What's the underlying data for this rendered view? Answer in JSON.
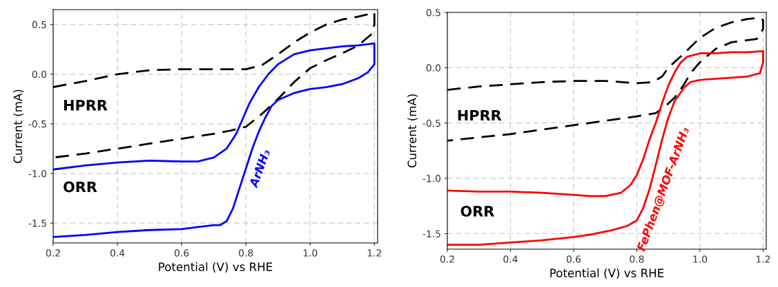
{
  "chart_data": [
    {
      "type": "line",
      "xlabel": "Potential (V) vs RHE",
      "ylabel": "Current (mA)",
      "xlim": [
        0.2,
        1.21
      ],
      "ylim": [
        -1.7,
        0.65
      ],
      "xticks": [
        {
          "value": 0.2,
          "label": "0.2"
        },
        {
          "value": 0.4,
          "label": "0.4"
        },
        {
          "value": 0.6,
          "label": "0.6"
        },
        {
          "value": 0.8,
          "label": "0.8"
        },
        {
          "value": 1.0,
          "label": "1.0"
        },
        {
          "value": 1.2,
          "label": "1.2"
        }
      ],
      "yticks": [
        {
          "value": -1.5,
          "label": "-1.5"
        },
        {
          "value": -1.0,
          "label": "-1.0"
        },
        {
          "value": -0.5,
          "label": "-0.5"
        },
        {
          "value": 0.0,
          "label": "0.0"
        },
        {
          "value": 0.5,
          "label": "0.5"
        }
      ],
      "grid": true,
      "legend": false,
      "annotations": [
        "HPRR",
        "ORR"
      ],
      "series": [
        {
          "color": "#000000",
          "line_style": "dashed",
          "x": [
            0.2,
            0.3,
            0.4,
            0.5,
            0.6,
            0.7,
            0.8,
            0.85,
            0.9,
            0.95,
            1.0,
            1.05,
            1.1,
            1.15,
            1.19,
            1.2,
            1.2,
            1.19,
            1.15,
            1.1,
            1.05,
            1.0,
            0.95,
            0.9,
            0.85,
            0.8,
            0.75,
            0.7,
            0.6,
            0.5,
            0.4,
            0.3,
            0.2
          ],
          "values": [
            -0.13,
            -0.07,
            0.0,
            0.04,
            0.05,
            0.05,
            0.05,
            0.09,
            0.2,
            0.32,
            0.42,
            0.5,
            0.55,
            0.58,
            0.61,
            0.62,
            0.5,
            0.4,
            0.29,
            0.21,
            0.14,
            0.06,
            -0.08,
            -0.25,
            -0.4,
            -0.53,
            -0.57,
            -0.6,
            -0.65,
            -0.7,
            -0.75,
            -0.8,
            -0.84
          ]
        },
        {
          "name": "ArNH₃",
          "color": "#0000ff",
          "line_style": "solid",
          "x": [
            0.2,
            0.3,
            0.4,
            0.5,
            0.6,
            0.65,
            0.7,
            0.72,
            0.74,
            0.76,
            0.78,
            0.8,
            0.82,
            0.84,
            0.86,
            0.88,
            0.9,
            0.95,
            1.0,
            1.05,
            1.1,
            1.15,
            1.18,
            1.2,
            1.2,
            1.15,
            1.1,
            1.0,
            0.95,
            0.9,
            0.87,
            0.84,
            0.81,
            0.79,
            0.77,
            0.74,
            0.7,
            0.65,
            0.6,
            0.5,
            0.4,
            0.3,
            0.2
          ],
          "values": [
            -1.64,
            -1.62,
            -1.59,
            -1.57,
            -1.56,
            -1.54,
            -1.52,
            -1.52,
            -1.48,
            -1.35,
            -1.15,
            -0.95,
            -0.75,
            -0.58,
            -0.44,
            -0.32,
            -0.26,
            -0.19,
            -0.15,
            -0.13,
            -0.1,
            -0.04,
            0.02,
            0.1,
            0.31,
            0.29,
            0.28,
            0.24,
            0.2,
            0.1,
            0.0,
            -0.13,
            -0.3,
            -0.45,
            -0.6,
            -0.75,
            -0.84,
            -0.88,
            -0.88,
            -0.87,
            -0.89,
            -0.92,
            -0.96
          ]
        }
      ]
    },
    {
      "type": "line",
      "xlabel": "Potential (V) vs RHE",
      "ylabel": "Current (mA)",
      "xlim": [
        0.2,
        1.21
      ],
      "ylim": [
        -1.64,
        0.5
      ],
      "xticks": [
        {
          "value": 0.2,
          "label": "0.2"
        },
        {
          "value": 0.4,
          "label": "0.4"
        },
        {
          "value": 0.6,
          "label": "0.6"
        },
        {
          "value": 0.8,
          "label": "0.8"
        },
        {
          "value": 1.0,
          "label": "1.0"
        },
        {
          "value": 1.2,
          "label": "1.2"
        }
      ],
      "yticks": [
        {
          "value": -1.5,
          "label": "-1.5"
        },
        {
          "value": -1.0,
          "label": "-1.0"
        },
        {
          "value": -0.5,
          "label": "-0.5"
        },
        {
          "value": 0.0,
          "label": "0.0"
        },
        {
          "value": 0.5,
          "label": "0.5"
        }
      ],
      "grid": true,
      "legend": false,
      "annotations": [
        "HPRR",
        "ORR"
      ],
      "series": [
        {
          "color": "#000000",
          "line_style": "dashed",
          "x": [
            0.2,
            0.3,
            0.4,
            0.5,
            0.6,
            0.7,
            0.8,
            0.85,
            0.88,
            0.9,
            0.95,
            1.0,
            1.05,
            1.1,
            1.15,
            1.19,
            1.2,
            1.2,
            1.18,
            1.1,
            1.05,
            1.0,
            0.97,
            0.95,
            0.92,
            0.89,
            0.86,
            0.8,
            0.7,
            0.6,
            0.5,
            0.4,
            0.3,
            0.2
          ],
          "values": [
            -0.2,
            -0.17,
            -0.15,
            -0.13,
            -0.12,
            -0.12,
            -0.14,
            -0.13,
            -0.08,
            0.0,
            0.13,
            0.27,
            0.36,
            0.41,
            0.44,
            0.45,
            0.43,
            0.35,
            0.26,
            0.23,
            0.17,
            0.05,
            -0.05,
            -0.15,
            -0.27,
            -0.35,
            -0.41,
            -0.44,
            -0.48,
            -0.52,
            -0.56,
            -0.6,
            -0.63,
            -0.66
          ]
        },
        {
          "name": "FePhen@MOF-ArNH₃",
          "color": "#ff0000",
          "line_style": "solid",
          "x": [
            0.2,
            0.3,
            0.4,
            0.5,
            0.6,
            0.65,
            0.72,
            0.77,
            0.8,
            0.82,
            0.84,
            0.86,
            0.88,
            0.9,
            0.92,
            0.95,
            0.97,
            1.0,
            1.1,
            1.15,
            1.19,
            1.2,
            1.2,
            1.15,
            1.1,
            1.05,
            1.0,
            0.96,
            0.94,
            0.92,
            0.9,
            0.88,
            0.86,
            0.84,
            0.82,
            0.8,
            0.78,
            0.75,
            0.7,
            0.65,
            0.6,
            0.5,
            0.4,
            0.3,
            0.2
          ],
          "values": [
            -1.6,
            -1.6,
            -1.58,
            -1.56,
            -1.53,
            -1.51,
            -1.47,
            -1.43,
            -1.38,
            -1.27,
            -1.1,
            -0.88,
            -0.65,
            -0.45,
            -0.3,
            -0.18,
            -0.13,
            -0.11,
            -0.09,
            -0.08,
            -0.05,
            0.05,
            0.15,
            0.14,
            0.14,
            0.13,
            0.13,
            0.1,
            0.05,
            -0.04,
            -0.16,
            -0.32,
            -0.5,
            -0.65,
            -0.83,
            -0.97,
            -1.06,
            -1.13,
            -1.16,
            -1.16,
            -1.15,
            -1.13,
            -1.12,
            -1.12,
            -1.11
          ]
        }
      ]
    }
  ]
}
